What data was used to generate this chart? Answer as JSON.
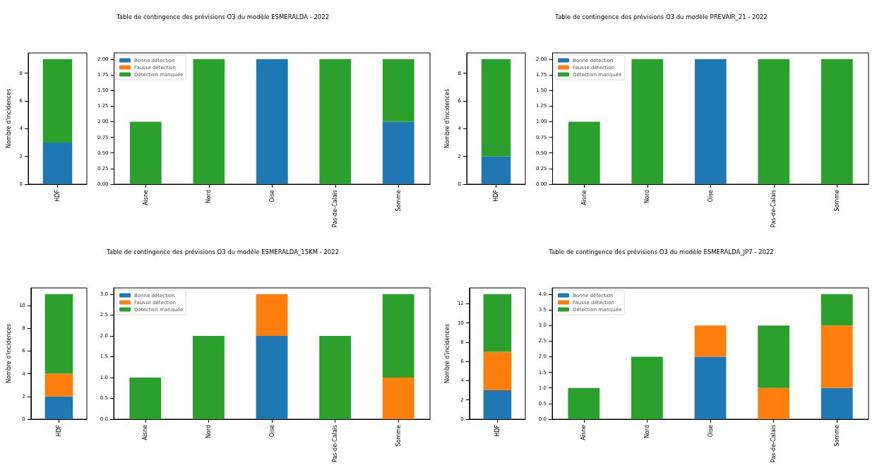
{
  "chart_data": [
    {
      "type": "bar",
      "stacked": true,
      "ylabel": "Nombre d'incidences",
      "categories": [
        "HDF"
      ],
      "grid": false,
      "ylim": [
        0,
        9.45
      ],
      "yticks": [
        0,
        2,
        4,
        6,
        8
      ],
      "series": [
        {
          "color": "#1f77b4",
          "values": [
            3
          ]
        },
        {
          "color": "#ff7f0e",
          "values": [
            0
          ]
        },
        {
          "color": "#2ca02c",
          "values": [
            6
          ]
        }
      ]
    },
    {
      "type": "bar",
      "stacked": true,
      "title": "Table de contingence des prévisions O3 du modèle ESMERALDA - 2022",
      "categories": [
        "Aisne",
        "Nord",
        "Oise",
        "Pas-de-Calais",
        "Somme"
      ],
      "grid": false,
      "legend": "top left",
      "ylim": [
        0,
        2.1
      ],
      "yticks": [
        {
          "value": 0,
          "label": "0.00"
        },
        {
          "value": 0.25,
          "label": "0.25"
        },
        {
          "value": 0.5,
          "label": "0.50"
        },
        {
          "value": 0.75,
          "label": "0.75"
        },
        {
          "value": 1,
          "label": "1.00"
        },
        {
          "value": 1.25,
          "label": "1.25"
        },
        {
          "value": 1.5,
          "label": "1.50"
        },
        {
          "value": 1.75,
          "label": "1.75"
        },
        {
          "value": 2,
          "label": "2.00"
        }
      ],
      "series": [
        {
          "name": "Bonne détection",
          "color": "#1f77b4",
          "values": [
            0,
            0,
            2,
            0,
            1
          ]
        },
        {
          "name": "Fausse détection",
          "color": "#ff7f0e",
          "values": [
            0,
            0,
            0,
            0,
            0
          ]
        },
        {
          "name": "Détection manquée",
          "color": "#2ca02c",
          "values": [
            1,
            2,
            0,
            2,
            1
          ]
        }
      ]
    },
    {
      "type": "bar",
      "stacked": true,
      "ylabel": "Nombre d'incidences",
      "categories": [
        "HDF"
      ],
      "grid": false,
      "ylim": [
        0,
        9.45
      ],
      "yticks": [
        0,
        2,
        4,
        6,
        8
      ],
      "series": [
        {
          "color": "#1f77b4",
          "values": [
            2
          ]
        },
        {
          "color": "#ff7f0e",
          "values": [
            0
          ]
        },
        {
          "color": "#2ca02c",
          "values": [
            7
          ]
        }
      ]
    },
    {
      "type": "bar",
      "stacked": true,
      "title": "Table de contingence des prévisions O3 du modèle PREVAIR_21 - 2022",
      "categories": [
        "Aisne",
        "Nord",
        "Oise",
        "Pas-de-Calais",
        "Somme"
      ],
      "grid": false,
      "legend": "top left",
      "ylim": [
        0,
        2.1
      ],
      "yticks": [
        {
          "value": 0,
          "label": "0.00"
        },
        {
          "value": 0.25,
          "label": "0.25"
        },
        {
          "value": 0.5,
          "label": "0.50"
        },
        {
          "value": 0.75,
          "label": "0.75"
        },
        {
          "value": 1,
          "label": "1.00"
        },
        {
          "value": 1.25,
          "label": "1.25"
        },
        {
          "value": 1.5,
          "label": "1.50"
        },
        {
          "value": 1.75,
          "label": "1.75"
        },
        {
          "value": 2,
          "label": "2.00"
        }
      ],
      "series": [
        {
          "name": "Bonne détection",
          "color": "#1f77b4",
          "values": [
            0,
            0,
            2,
            0,
            0
          ]
        },
        {
          "name": "Fausse détection",
          "color": "#ff7f0e",
          "values": [
            0,
            0,
            0,
            0,
            0
          ]
        },
        {
          "name": "Détection manquée",
          "color": "#2ca02c",
          "values": [
            1,
            2,
            0,
            2,
            2
          ]
        }
      ]
    },
    {
      "type": "bar",
      "stacked": true,
      "ylabel": "Nombre d'incidences",
      "categories": [
        "HDF"
      ],
      "grid": false,
      "ylim": [
        0,
        11.55
      ],
      "yticks": [
        0,
        2,
        4,
        6,
        8,
        10
      ],
      "series": [
        {
          "color": "#1f77b4",
          "values": [
            2
          ]
        },
        {
          "color": "#ff7f0e",
          "values": [
            2
          ]
        },
        {
          "color": "#2ca02c",
          "values": [
            7
          ]
        }
      ]
    },
    {
      "type": "bar",
      "stacked": true,
      "title": "Table de contingence des prévisions O3 du modèle ESMERALDA_15KM - 2022",
      "categories": [
        "Aisne",
        "Nord",
        "Oise",
        "Pas-de-Calais",
        "Somme"
      ],
      "grid": false,
      "legend": "top left",
      "ylim": [
        0,
        3.15
      ],
      "yticks": [
        {
          "value": 0,
          "label": "0.0"
        },
        {
          "value": 0.5,
          "label": "0.5"
        },
        {
          "value": 1,
          "label": "1.0"
        },
        {
          "value": 1.5,
          "label": "1.5"
        },
        {
          "value": 2,
          "label": "2.0"
        },
        {
          "value": 2.5,
          "label": "2.5"
        },
        {
          "value": 3,
          "label": "3.0"
        }
      ],
      "series": [
        {
          "name": "Bonne détection",
          "color": "#1f77b4",
          "values": [
            0,
            0,
            2,
            0,
            0
          ]
        },
        {
          "name": "Fausse détection",
          "color": "#ff7f0e",
          "values": [
            0,
            0,
            1,
            0,
            1
          ]
        },
        {
          "name": "Détection manquée",
          "color": "#2ca02c",
          "values": [
            1,
            2,
            0,
            2,
            2
          ]
        }
      ]
    },
    {
      "type": "bar",
      "stacked": true,
      "ylabel": "Nombre d'incidences",
      "categories": [
        "HDF"
      ],
      "grid": false,
      "ylim": [
        0,
        13.65
      ],
      "yticks": [
        0,
        2,
        4,
        6,
        8,
        10,
        12
      ],
      "series": [
        {
          "color": "#1f77b4",
          "values": [
            3
          ]
        },
        {
          "color": "#ff7f0e",
          "values": [
            4
          ]
        },
        {
          "color": "#2ca02c",
          "values": [
            6
          ]
        }
      ]
    },
    {
      "type": "bar",
      "stacked": true,
      "title": "Table de contingence des prévisions O3 du modèle ESMERALDA_JP7 - 2022",
      "categories": [
        "Aisne",
        "Nord",
        "Oise",
        "Pas-de-Calais",
        "Somme"
      ],
      "grid": false,
      "legend": "top left",
      "ylim": [
        0,
        4.2
      ],
      "yticks": [
        {
          "value": 0,
          "label": "0.0"
        },
        {
          "value": 0.5,
          "label": "0.5"
        },
        {
          "value": 1,
          "label": "1.0"
        },
        {
          "value": 1.5,
          "label": "1.5"
        },
        {
          "value": 2,
          "label": "2.0"
        },
        {
          "value": 2.5,
          "label": "2.5"
        },
        {
          "value": 3,
          "label": "3.0"
        },
        {
          "value": 3.5,
          "label": "3.5"
        },
        {
          "value": 4,
          "label": "4.0"
        }
      ],
      "series": [
        {
          "name": "Bonne détection",
          "color": "#1f77b4",
          "values": [
            0,
            0,
            2,
            0,
            1
          ]
        },
        {
          "name": "Fausse détection",
          "color": "#ff7f0e",
          "values": [
            0,
            0,
            1,
            1,
            2
          ]
        },
        {
          "name": "Détection manquée",
          "color": "#2ca02c",
          "values": [
            1,
            2,
            0,
            2,
            1
          ]
        }
      ]
    }
  ]
}
